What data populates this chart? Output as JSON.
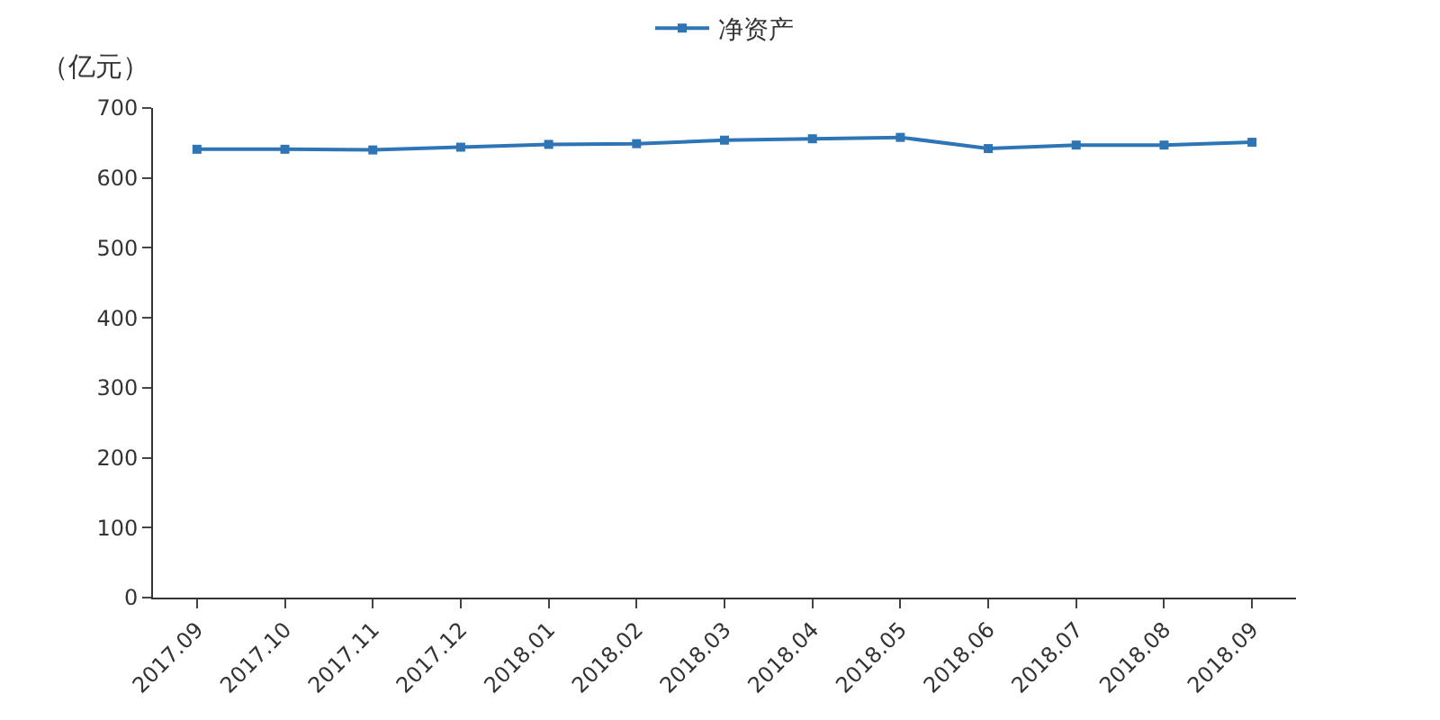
{
  "chart_data": {
    "type": "line",
    "ylabel": "（亿元）",
    "categories": [
      "2017.09",
      "2017.10",
      "2017.11",
      "2017.12",
      "2018.01",
      "2018.02",
      "2018.03",
      "2018.04",
      "2018.05",
      "2018.06",
      "2018.07",
      "2018.08",
      "2018.09"
    ],
    "series": [
      {
        "name": "净资产",
        "color": "#2e75b6",
        "values": [
          641,
          641,
          640,
          644,
          648,
          649,
          654,
          656,
          658,
          642,
          647,
          647,
          651
        ]
      }
    ],
    "ylim": [
      0,
      700
    ],
    "yticks": [
      0,
      100,
      200,
      300,
      400,
      500,
      600,
      700
    ],
    "legend": "top",
    "marker": "square",
    "line_style": "solid"
  }
}
